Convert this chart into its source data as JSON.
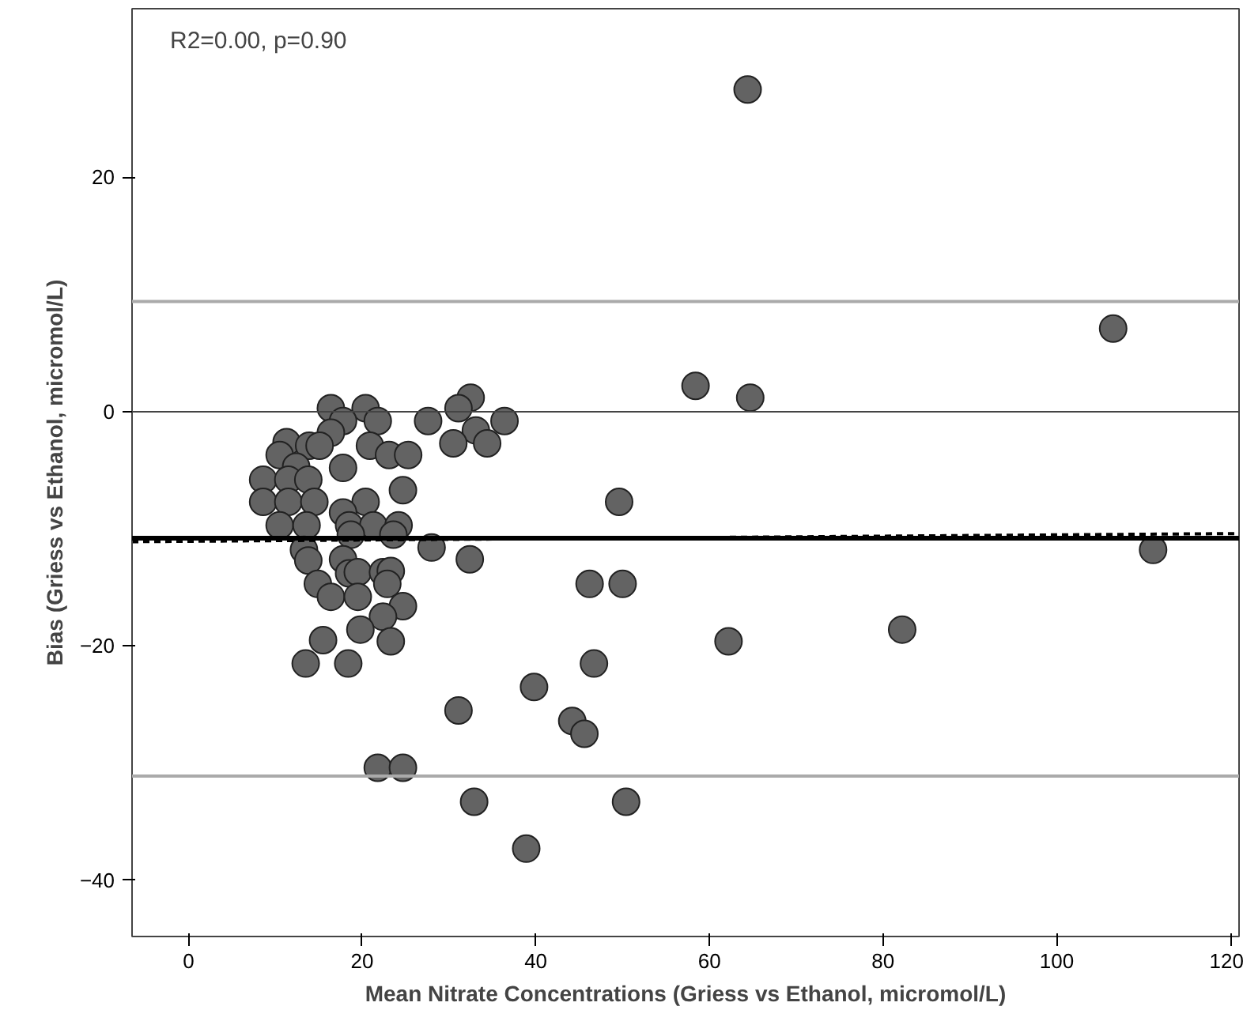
{
  "chart_data": {
    "type": "scatter",
    "xlabel": "Mean Nitrate Concentrations (Griess vs Ethanol, micromol/L)",
    "ylabel": "Bias (Griess vs Ethanol, micromol/L)",
    "annotations": [
      "R2=0.00, p=0.90"
    ],
    "xlim": [
      -6.5,
      121
    ],
    "ylim": [
      -44.8,
      34.4
    ],
    "xticks": [
      0,
      20,
      40,
      60,
      80,
      100,
      120
    ],
    "yticks": [
      -40,
      -20,
      0,
      20
    ],
    "grid": false,
    "series": [
      {
        "marker": "circle",
        "color": "#636363",
        "x": [
          16.4,
          20.4,
          17.8,
          21.8,
          16.4,
          11.3,
          13.9,
          15.1,
          20.9,
          10.5,
          12.4,
          17.8,
          23.1,
          25.3,
          8.6,
          11.5,
          13.8,
          24.7,
          8.6,
          11.5,
          14.5,
          20.4,
          17.8,
          10.5,
          13.6,
          18.5,
          21.3,
          24.2,
          18.7,
          23.6,
          13.3,
          28.0,
          13.8,
          17.8,
          32.4,
          18.5,
          19.5,
          22.4,
          23.3,
          22.9,
          14.9,
          16.4,
          19.5,
          46.2,
          24.7,
          22.4,
          19.8,
          23.3,
          15.5,
          13.5,
          18.4,
          46.7,
          39.8,
          32.5,
          31.1,
          27.6,
          36.4,
          33.1,
          30.5,
          34.4,
          58.4,
          64.7,
          49.6,
          50.0,
          82.2,
          62.2,
          31.1,
          44.2,
          45.6,
          32.9,
          50.4,
          38.9,
          21.8,
          24.7,
          106.5,
          111.1,
          64.4
        ],
        "values": [
          0.3,
          0.3,
          -0.8,
          -0.8,
          -1.8,
          -2.6,
          -2.9,
          -2.9,
          -2.9,
          -3.7,
          -4.7,
          -4.8,
          -3.7,
          -3.7,
          -5.8,
          -5.8,
          -5.8,
          -6.7,
          -7.7,
          -7.7,
          -7.7,
          -7.7,
          -8.6,
          -9.7,
          -9.7,
          -9.7,
          -9.7,
          -9.7,
          -10.5,
          -10.5,
          -11.8,
          -11.6,
          -12.7,
          -12.6,
          -12.6,
          -13.8,
          -13.7,
          -13.7,
          -13.6,
          -14.7,
          -14.7,
          -15.8,
          -15.8,
          -14.7,
          -16.6,
          -17.5,
          -18.6,
          -19.6,
          -19.5,
          -21.5,
          -21.5,
          -21.5,
          -23.5,
          1.2,
          0.3,
          -0.8,
          -0.8,
          -1.6,
          -2.7,
          -2.7,
          2.2,
          1.2,
          -7.7,
          -14.7,
          -18.6,
          -19.6,
          -25.5,
          -26.4,
          -27.5,
          -33.3,
          -33.3,
          -37.3,
          -30.4,
          -30.4,
          7.1,
          -11.8,
          27.5
        ]
      },
      {
        "type": "line",
        "color": "#000000",
        "line_style": "dashed",
        "x": [
          -6.5,
          121
        ],
        "values": [
          -11.1,
          -10.4
        ]
      }
    ],
    "ref_lines": [
      {
        "axis": "y",
        "value": 9.4,
        "color": "#aaaaaa"
      },
      {
        "axis": "y",
        "value": 0,
        "color": "#444444"
      },
      {
        "axis": "y",
        "value": -10.8,
        "color": "#000000"
      },
      {
        "axis": "y",
        "value": -31.1,
        "color": "#aaaaaa"
      }
    ]
  }
}
